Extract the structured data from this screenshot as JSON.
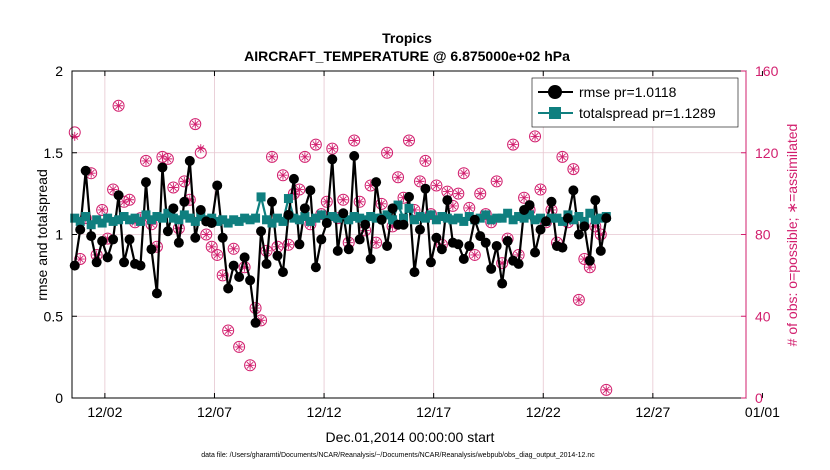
{
  "chart_data": {
    "type": "line",
    "title": "Tropics",
    "subtitle": "AIRCRAFT_TEMPERATURE @ 6.875000e+02 hPa",
    "xlabel": "Dec.01,2014 00:00:00 start",
    "ylabel_left": "rmse and totalspread",
    "ylabel_right": "# of obs: o=possible; ∗=assimilated",
    "footnote": "data file: /Users/gharamti/Documents/NCAR/Reanalysis/~/Documents/NCAR/Reanalysis/webpub/obs_diag_output_2014-12.nc",
    "xlim": [
      0.5,
      31.25
    ],
    "ylim_left": [
      0,
      2
    ],
    "ylim_right": [
      0,
      160
    ],
    "x_ticks": [
      2,
      7,
      12,
      17,
      22,
      27,
      32
    ],
    "x_tick_labels": [
      "12/02",
      "12/07",
      "12/12",
      "12/17",
      "12/22",
      "12/27",
      "01/01"
    ],
    "y_ticks_left": [
      0,
      0.5,
      1,
      1.5,
      2
    ],
    "y_tick_labels_left": [
      "0",
      "0.5",
      "1",
      "1.5",
      "2"
    ],
    "y_ticks_right": [
      0,
      40,
      80,
      120,
      160
    ],
    "y_tick_labels_right": [
      "0",
      "40",
      "80",
      "120",
      "160"
    ],
    "x_start": 0.625,
    "x_step": 0.25,
    "series": [
      {
        "name": "rmse",
        "legend": "rmse pr=1.0118",
        "color": "#000000",
        "values": [
          0.81,
          1.03,
          1.39,
          0.99,
          0.83,
          0.96,
          0.86,
          0.97,
          1.24,
          0.83,
          0.97,
          0.82,
          0.81,
          1.32,
          0.91,
          0.64,
          1.41,
          1.02,
          1.16,
          0.95,
          1.2,
          1.45,
          0.98,
          1.15,
          1.08,
          1.07,
          1.3,
          0.98,
          0.67,
          0.81,
          0.74,
          0.86,
          0.72,
          0.46,
          1.02,
          0.82,
          1.2,
          0.87,
          0.77,
          1.12,
          1.34,
          0.94,
          1.16,
          1.27,
          0.8,
          0.97,
          1.07,
          1.46,
          0.9,
          1.13,
          0.91,
          1.48,
          0.97,
          1.06,
          0.85,
          1.32,
          1.09,
          0.93,
          1.16,
          1.06,
          1.06,
          1.23,
          0.77,
          1.03,
          1.28,
          0.83,
          0.98,
          0.91,
          1.21,
          0.95,
          0.94,
          0.85,
          0.93,
          1.09,
          0.99,
          0.95,
          0.79,
          0.93,
          0.7,
          0.96,
          0.84,
          0.82,
          1.15,
          1.18,
          0.89,
          1.03,
          1.08,
          1.2,
          0.93,
          0.92,
          1.1,
          1.27,
          1.0,
          1.05,
          0.84,
          1.21,
          0.9,
          1.1
        ]
      },
      {
        "name": "totalspread",
        "legend": "totalspread pr=1.1289",
        "color": "#0f7f7f",
        "values": [
          1.1,
          1.08,
          1.11,
          1.06,
          1.09,
          1.07,
          1.1,
          1.08,
          1.09,
          1.11,
          1.09,
          1.1,
          1.08,
          1.12,
          1.09,
          1.11,
          1.1,
          1.13,
          1.1,
          1.09,
          1.12,
          1.1,
          1.08,
          1.11,
          1.09,
          1.1,
          1.08,
          1.09,
          1.07,
          1.09,
          1.08,
          1.1,
          1.09,
          1.1,
          1.23,
          1.09,
          1.07,
          1.1,
          1.08,
          1.22,
          1.1,
          1.09,
          1.11,
          1.08,
          1.1,
          1.12,
          1.09,
          1.11,
          1.1,
          1.12,
          1.09,
          1.11,
          1.1,
          1.09,
          1.11,
          1.1,
          1.1,
          1.12,
          1.09,
          1.18,
          1.1,
          1.16,
          1.09,
          1.11,
          1.1,
          1.12,
          1.09,
          1.11,
          1.1,
          1.09,
          1.1,
          1.08,
          1.11,
          1.09,
          1.1,
          1.12,
          1.09,
          1.1,
          1.1,
          1.13,
          1.09,
          1.11,
          1.1,
          1.12,
          1.09,
          1.1,
          1.08,
          1.1,
          1.1,
          1.08,
          1.12,
          1.09,
          1.11,
          1.08,
          1.13,
          1.09,
          1.1,
          1.11
        ]
      }
    ],
    "obs_possible": [
      130,
      68,
      88,
      110,
      70,
      92,
      78,
      102,
      143,
      96,
      97,
      86,
      88,
      116,
      85,
      74,
      118,
      117,
      103,
      83,
      106,
      97,
      134,
      120,
      80,
      74,
      70,
      60,
      33,
      73,
      25,
      64,
      16,
      44,
      38,
      72,
      118,
      74,
      109,
      75,
      100,
      102,
      118,
      85,
      124,
      90,
      96,
      122,
      88,
      97,
      76,
      126,
      96,
      82,
      104,
      76,
      95,
      120,
      84,
      108,
      98,
      126,
      92,
      106,
      116,
      90,
      104,
      75,
      101,
      94,
      100,
      110,
      93,
      70,
      100,
      90,
      86,
      106,
      66,
      78,
      124,
      70,
      98,
      92,
      128,
      102,
      86,
      92,
      76,
      118,
      86,
      112,
      48,
      68,
      64,
      84,
      80,
      4
    ],
    "obs_assimilated": [
      128,
      68,
      88,
      110,
      70,
      92,
      78,
      102,
      143,
      96,
      97,
      86,
      88,
      116,
      85,
      74,
      118,
      117,
      103,
      83,
      106,
      97,
      134,
      122,
      80,
      74,
      70,
      60,
      33,
      73,
      25,
      64,
      16,
      44,
      38,
      72,
      118,
      74,
      109,
      75,
      100,
      102,
      118,
      85,
      124,
      90,
      96,
      122,
      88,
      97,
      76,
      126,
      96,
      82,
      104,
      76,
      95,
      120,
      84,
      108,
      98,
      126,
      92,
      106,
      116,
      90,
      104,
      75,
      101,
      94,
      100,
      110,
      93,
      70,
      100,
      90,
      86,
      106,
      66,
      78,
      124,
      70,
      98,
      92,
      128,
      102,
      86,
      92,
      76,
      118,
      86,
      112,
      48,
      68,
      64,
      84,
      80,
      4
    ],
    "obs_color": "#d21f6e",
    "grid_color": "#e6c6d0"
  }
}
